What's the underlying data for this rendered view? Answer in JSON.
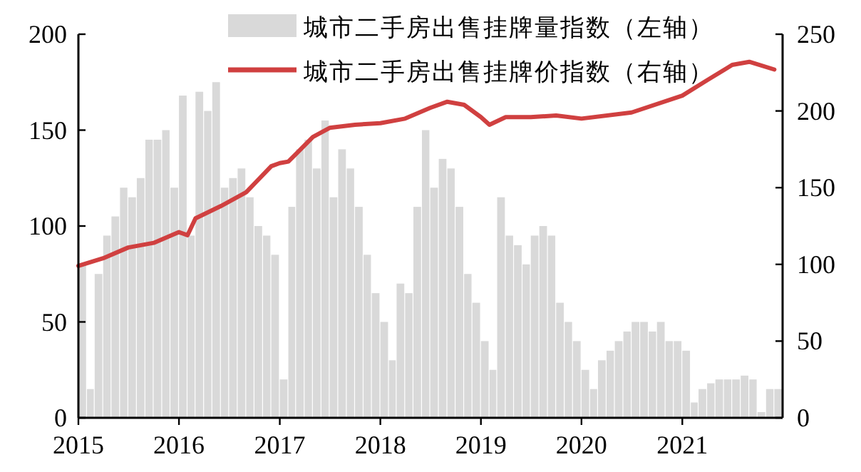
{
  "chart_data": {
    "type": "bar",
    "x": [
      "2015-01",
      "2015-02",
      "2015-03",
      "2015-04",
      "2015-05",
      "2015-06",
      "2015-07",
      "2015-08",
      "2015-09",
      "2015-10",
      "2015-11",
      "2015-12",
      "2016-01",
      "2016-02",
      "2016-03",
      "2016-04",
      "2016-05",
      "2016-06",
      "2016-07",
      "2016-08",
      "2016-09",
      "2016-10",
      "2016-11",
      "2016-12",
      "2017-01",
      "2017-02",
      "2017-03",
      "2017-04",
      "2017-05",
      "2017-06",
      "2017-07",
      "2017-08",
      "2017-09",
      "2017-10",
      "2017-11",
      "2017-12",
      "2018-01",
      "2018-02",
      "2018-03",
      "2018-04",
      "2018-05",
      "2018-06",
      "2018-07",
      "2018-08",
      "2018-09",
      "2018-10",
      "2018-11",
      "2018-12",
      "2019-01",
      "2019-02",
      "2019-03",
      "2019-04",
      "2019-05",
      "2019-06",
      "2019-07",
      "2019-08",
      "2019-09",
      "2019-10",
      "2019-11",
      "2019-12",
      "2020-01",
      "2020-02",
      "2020-03",
      "2020-04",
      "2020-05",
      "2020-06",
      "2020-07",
      "2020-08",
      "2020-09",
      "2020-10",
      "2020-11",
      "2020-12",
      "2021-01",
      "2021-02",
      "2021-03",
      "2021-04",
      "2021-05",
      "2021-06",
      "2021-07",
      "2021-08",
      "2021-09",
      "2021-10",
      "2021-11",
      "2021-12"
    ],
    "series": [
      {
        "name": "城市二手房出售挂牌量指数（左轴）",
        "color": "#d9d9d9",
        "values": [
          80,
          15,
          75,
          95,
          105,
          120,
          115,
          125,
          145,
          145,
          150,
          120,
          168,
          95,
          170,
          160,
          175,
          120,
          125,
          130,
          115,
          100,
          95,
          85,
          20,
          110,
          140,
          145,
          130,
          155,
          115,
          140,
          130,
          110,
          85,
          65,
          50,
          30,
          70,
          65,
          110,
          150,
          120,
          135,
          130,
          110,
          75,
          60,
          40,
          25,
          115,
          95,
          90,
          80,
          95,
          100,
          95,
          60,
          50,
          40,
          25,
          15,
          30,
          35,
          40,
          45,
          50,
          50,
          45,
          50,
          40,
          40,
          35,
          8,
          15,
          18,
          20,
          20,
          20,
          22,
          20,
          3,
          15,
          15
        ]
      },
      {
        "name": "城市二手房出售挂牌价指数（右轴）",
        "type": "line",
        "axis": "y2",
        "color": "#d04040",
        "x": [
          "2015-01",
          "2015-04",
          "2015-07",
          "2015-10",
          "2016-01",
          "2016-02",
          "2016-03",
          "2016-06",
          "2016-09",
          "2016-12",
          "2017-01",
          "2017-02",
          "2017-03",
          "2017-05",
          "2017-07",
          "2017-10",
          "2018-01",
          "2018-04",
          "2018-07",
          "2018-09",
          "2018-11",
          "2019-01",
          "2019-02",
          "2019-04",
          "2019-07",
          "2019-10",
          "2020-01",
          "2020-07",
          "2021-01",
          "2021-04",
          "2021-07",
          "2021-09",
          "2021-12"
        ],
        "values": [
          99,
          104,
          111,
          114,
          121,
          119,
          130,
          138,
          147,
          164,
          166,
          167,
          172,
          183,
          189,
          191,
          192,
          195,
          202,
          206,
          204,
          196,
          191,
          196,
          196,
          197,
          195,
          199,
          210,
          220,
          230,
          232,
          227
        ]
      }
    ],
    "xlim": [
      "2015-01-01",
      "2021-12-31"
    ],
    "xticks": [
      {
        "value": "2015-01-01",
        "label": "2015"
      },
      {
        "value": "2016-01-01",
        "label": "2016"
      },
      {
        "value": "2017-01-01",
        "label": "2017"
      },
      {
        "value": "2018-01-01",
        "label": "2018"
      },
      {
        "value": "2019-01-01",
        "label": "2019"
      },
      {
        "value": "2020-01-01",
        "label": "2020"
      },
      {
        "value": "2021-01-01",
        "label": "2021"
      }
    ],
    "ylim": [
      0,
      200
    ],
    "yticks": [
      0,
      50,
      100,
      150,
      200
    ],
    "y2lim": [
      0,
      250
    ],
    "y2ticks": [
      0,
      50,
      100,
      150,
      200,
      250
    ],
    "legend": "top right",
    "grid": false
  }
}
